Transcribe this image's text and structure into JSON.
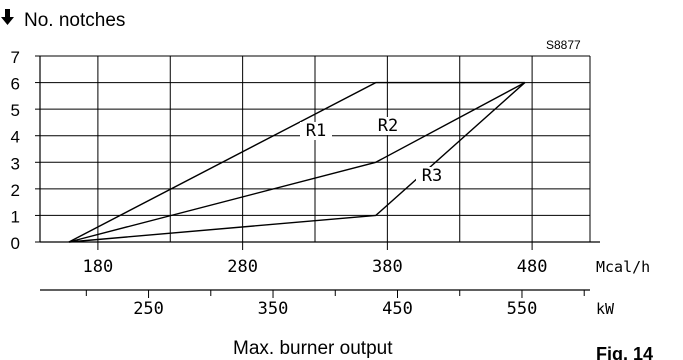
{
  "chart_data": {
    "type": "line",
    "ylabel": "No. notches",
    "ylabel_icon": "down-arrow-icon",
    "code": "S8877",
    "figure_label": "Fig. 14",
    "xlabel": "Max. burner output",
    "x_unit_top": "Mcal/h",
    "x_unit_bottom": "kW",
    "xlim": [
      140,
      520
    ],
    "ylim": [
      0,
      7
    ],
    "y_ticks": [
      "0",
      "1",
      "2",
      "3",
      "4",
      "5",
      "6",
      "7"
    ],
    "x_ticks_top": [
      "180",
      "280",
      "380",
      "480"
    ],
    "x_ticks_bottom": [
      "250",
      "350",
      "450",
      "550"
    ],
    "grid": true,
    "series": [
      {
        "name": "R1",
        "x": [
          160,
          372,
          475
        ],
        "y": [
          0,
          6,
          6
        ]
      },
      {
        "name": "R2",
        "x": [
          160,
          372,
          475
        ],
        "y": [
          0,
          3,
          6
        ]
      },
      {
        "name": "R3",
        "x": [
          160,
          372,
          475
        ],
        "y": [
          0,
          1,
          6
        ]
      }
    ]
  }
}
